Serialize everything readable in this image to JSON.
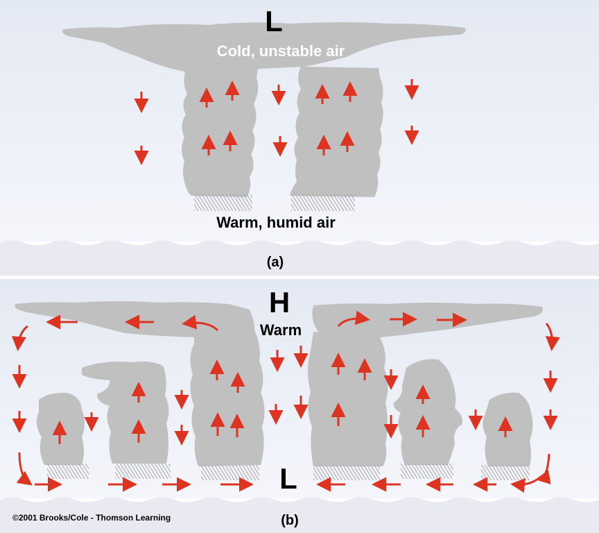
{
  "panel_a": {
    "pressure_top": "L",
    "upper_label": "Cold, unstable air",
    "lower_label": "Warm, humid air",
    "caption": "(a)"
  },
  "panel_b": {
    "pressure_top": "H",
    "upper_label": "Warm",
    "pressure_bottom": "L",
    "caption": "(b)"
  },
  "copyright": "©2001 Brooks/Cole - Thomson Learning",
  "colors": {
    "sky_top": "#e6ebf4",
    "sky_bottom": "#f3f5fa",
    "ground": "#e8e9f0",
    "cloud": "#c0c0c0",
    "arrow": "#dd3422",
    "rain": "#a3a3a3",
    "divider": "#ffffff"
  }
}
